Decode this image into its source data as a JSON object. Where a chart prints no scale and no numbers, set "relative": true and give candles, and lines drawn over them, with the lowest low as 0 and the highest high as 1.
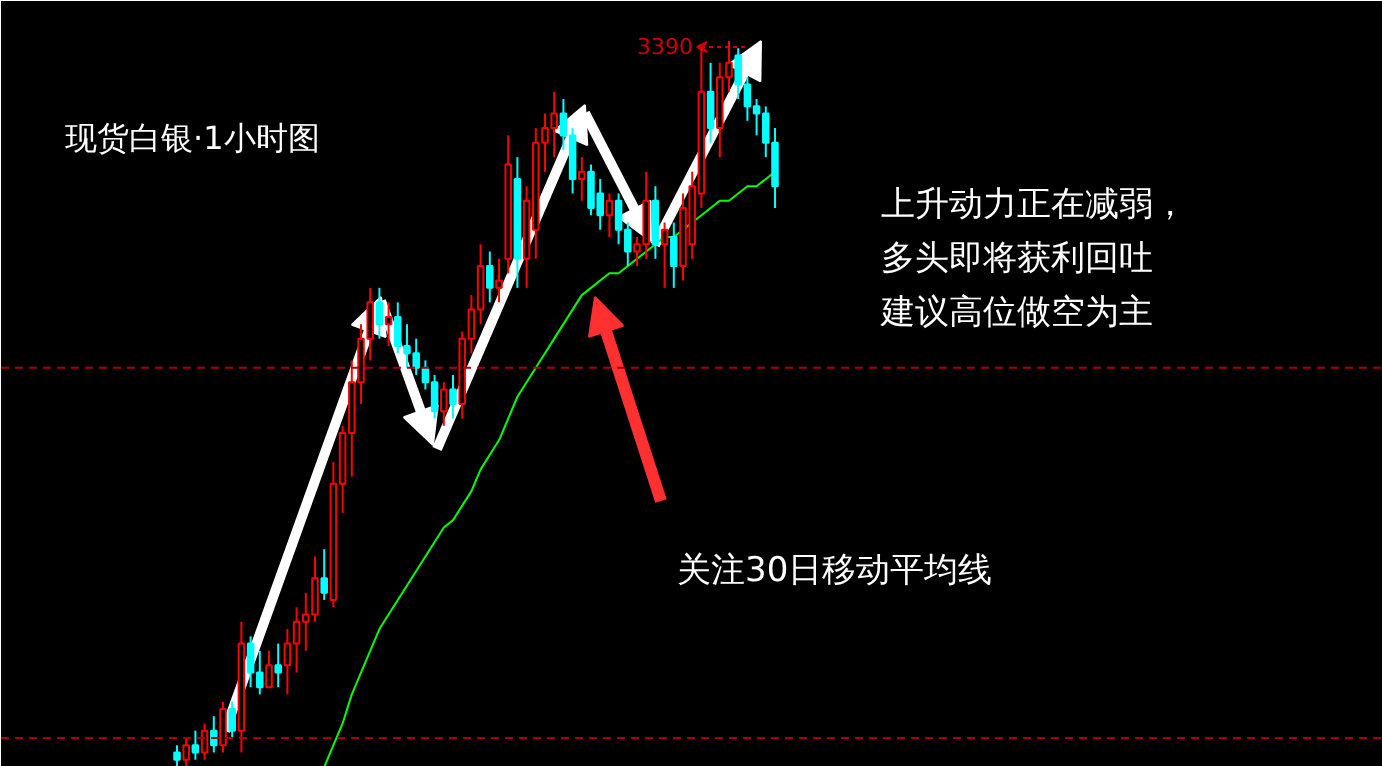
{
  "chart_data": {
    "type": "candlestick",
    "relative": true,
    "title": "现货白银·1小时图",
    "grid": false,
    "categories": [
      null,
      null,
      null,
      null,
      null,
      null,
      null,
      null,
      null,
      null,
      null,
      null,
      null,
      null,
      null,
      null,
      null,
      null,
      null,
      null,
      null,
      null,
      null,
      null,
      null,
      null,
      null,
      null,
      null,
      null,
      null,
      null,
      null,
      null,
      null,
      null,
      null,
      null,
      null,
      null,
      null,
      null,
      null,
      null,
      null,
      null,
      null,
      null,
      null,
      null,
      null,
      null,
      null,
      null,
      null,
      null,
      null,
      null,
      null,
      null,
      null,
      null,
      null,
      null,
      null,
      null
    ],
    "ohlc": [
      [
        0.02,
        0.03,
        0.0,
        0.01
      ],
      [
        0.01,
        0.04,
        0.0,
        0.03
      ],
      [
        0.03,
        0.05,
        0.01,
        0.02
      ],
      [
        0.02,
        0.06,
        0.01,
        0.05
      ],
      [
        0.05,
        0.07,
        0.02,
        0.03
      ],
      [
        0.03,
        0.09,
        0.02,
        0.08
      ],
      [
        0.08,
        0.09,
        0.04,
        0.05
      ],
      [
        0.05,
        0.2,
        0.02,
        0.17
      ],
      [
        0.17,
        0.18,
        0.11,
        0.13
      ],
      [
        0.13,
        0.16,
        0.1,
        0.11
      ],
      [
        0.11,
        0.16,
        0.11,
        0.14
      ],
      [
        0.14,
        0.17,
        0.11,
        0.13
      ],
      [
        0.14,
        0.19,
        0.1,
        0.17
      ],
      [
        0.17,
        0.22,
        0.13,
        0.2
      ],
      [
        0.2,
        0.24,
        0.16,
        0.21
      ],
      [
        0.21,
        0.29,
        0.2,
        0.26
      ],
      [
        0.26,
        0.3,
        0.23,
        0.24
      ],
      [
        0.23,
        0.42,
        0.22,
        0.39
      ],
      [
        0.39,
        0.47,
        0.35,
        0.46
      ],
      [
        0.46,
        0.56,
        0.4,
        0.53
      ],
      [
        0.53,
        0.61,
        0.5,
        0.59
      ],
      [
        0.59,
        0.66,
        0.56,
        0.64
      ],
      [
        0.64,
        0.66,
        0.59,
        0.61
      ],
      [
        0.61,
        0.64,
        0.58,
        0.62
      ],
      [
        0.62,
        0.64,
        0.57,
        0.58
      ],
      [
        0.58,
        0.61,
        0.55,
        0.57
      ],
      [
        0.57,
        0.59,
        0.54,
        0.55
      ],
      [
        0.55,
        0.56,
        0.52,
        0.53
      ],
      [
        0.53,
        0.54,
        0.48,
        0.49
      ],
      [
        0.49,
        0.53,
        0.47,
        0.52
      ],
      [
        0.52,
        0.54,
        0.48,
        0.5
      ],
      [
        0.5,
        0.6,
        0.48,
        0.59
      ],
      [
        0.59,
        0.65,
        0.57,
        0.63
      ],
      [
        0.63,
        0.72,
        0.61,
        0.69
      ],
      [
        0.69,
        0.71,
        0.64,
        0.66
      ],
      [
        0.66,
        0.7,
        0.64,
        0.67
      ],
      [
        0.7,
        0.87,
        0.68,
        0.83
      ],
      [
        0.81,
        0.84,
        0.66,
        0.7
      ],
      [
        0.7,
        0.8,
        0.66,
        0.78
      ],
      [
        0.74,
        0.88,
        0.7,
        0.86
      ],
      [
        0.86,
        0.9,
        0.82,
        0.88
      ],
      [
        0.88,
        0.93,
        0.84,
        0.9
      ],
      [
        0.9,
        0.92,
        0.85,
        0.87
      ],
      [
        0.87,
        0.88,
        0.79,
        0.81
      ],
      [
        0.81,
        0.84,
        0.78,
        0.82
      ],
      [
        0.82,
        0.83,
        0.76,
        0.77
      ],
      [
        0.79,
        0.81,
        0.74,
        0.76
      ],
      [
        0.76,
        0.79,
        0.73,
        0.78
      ],
      [
        0.78,
        0.79,
        0.72,
        0.74
      ],
      [
        0.74,
        0.75,
        0.69,
        0.71
      ],
      [
        0.71,
        0.73,
        0.69,
        0.72
      ],
      [
        0.72,
        0.82,
        0.7,
        0.78
      ],
      [
        0.78,
        0.8,
        0.7,
        0.72
      ],
      [
        0.72,
        0.75,
        0.66,
        0.74
      ],
      [
        0.73,
        0.75,
        0.66,
        0.69
      ],
      [
        0.69,
        0.79,
        0.67,
        0.77
      ],
      [
        0.72,
        0.82,
        0.7,
        0.8
      ],
      [
        0.79,
        0.99,
        0.77,
        0.93
      ],
      [
        0.93,
        0.97,
        0.86,
        0.88
      ],
      [
        0.88,
        0.97,
        0.84,
        0.95
      ],
      [
        0.95,
        1.0,
        0.93,
        0.97
      ],
      [
        0.98,
        0.99,
        0.92,
        0.94
      ],
      [
        0.94,
        0.95,
        0.89,
        0.91
      ],
      [
        0.91,
        0.92,
        0.87,
        0.9
      ],
      [
        0.9,
        0.91,
        0.84,
        0.86
      ],
      [
        0.86,
        0.88,
        0.77,
        0.8
      ]
    ],
    "colors": [
      "#00ffff",
      "#ff0000",
      "#00ffff",
      "#ff0000",
      "#00ffff",
      "#ff0000",
      "#00ffff",
      "#ff0000",
      "#00ffff",
      "#00ffff",
      "#ff0000",
      "#00ffff",
      "#ff0000",
      "#ff0000",
      "#ff0000",
      "#ff0000",
      "#00ffff",
      "#ff0000",
      "#ff0000",
      "#ff0000",
      "#ff0000",
      "#ff0000",
      "#00ffff",
      "#ff0000",
      "#00ffff",
      "#00ffff",
      "#00ffff",
      "#00ffff",
      "#00ffff",
      "#ff0000",
      "#00ffff",
      "#ff0000",
      "#ff0000",
      "#ff0000",
      "#00ffff",
      "#ff0000",
      "#ff0000",
      "#00ffff",
      "#ff0000",
      "#ff0000",
      "#ff0000",
      "#ff0000",
      "#00ffff",
      "#00ffff",
      "#ff0000",
      "#00ffff",
      "#00ffff",
      "#ff0000",
      "#00ffff",
      "#00ffff",
      "#ff0000",
      "#ff0000",
      "#00ffff",
      "#ff0000",
      "#00ffff",
      "#ff0000",
      "#ff0000",
      "#ff0000",
      "#00ffff",
      "#ff0000",
      "#ff0000",
      "#00ffff",
      "#00ffff",
      "#00ffff",
      "#00ffff",
      "#00ffff"
    ],
    "series": [
      {
        "type": "line",
        "color": "#00ff00",
        "values": [
          null,
          null,
          null,
          null,
          null,
          null,
          null,
          null,
          null,
          null,
          null,
          null,
          null,
          null,
          null,
          null,
          0.0,
          0.03,
          0.06,
          0.1,
          0.13,
          0.16,
          0.19,
          0.21,
          0.23,
          0.25,
          0.27,
          0.29,
          0.31,
          0.33,
          0.34,
          0.36,
          0.38,
          0.41,
          0.43,
          0.45,
          0.48,
          0.51,
          0.53,
          0.55,
          0.57,
          0.59,
          0.61,
          0.63,
          0.65,
          0.66,
          0.67,
          0.68,
          0.68,
          0.69,
          0.7,
          0.71,
          0.72,
          0.73,
          0.73,
          0.74,
          0.75,
          0.76,
          0.77,
          0.78,
          0.78,
          0.79,
          0.8,
          0.8,
          0.81,
          0.82
        ]
      }
    ],
    "ref_lines": [
      {
        "axis": "y",
        "value": 0.55,
        "color": "#aa0000",
        "line_style": "dashed"
      },
      {
        "axis": "y",
        "value": 0.04,
        "color": "#aa0000",
        "line_style": "dashed"
      }
    ],
    "annotations": [
      "3390",
      "上升动力正在减弱，",
      "多头即将获利回吐",
      "建议高位做空为主",
      "关注30日移动平均线"
    ]
  }
}
